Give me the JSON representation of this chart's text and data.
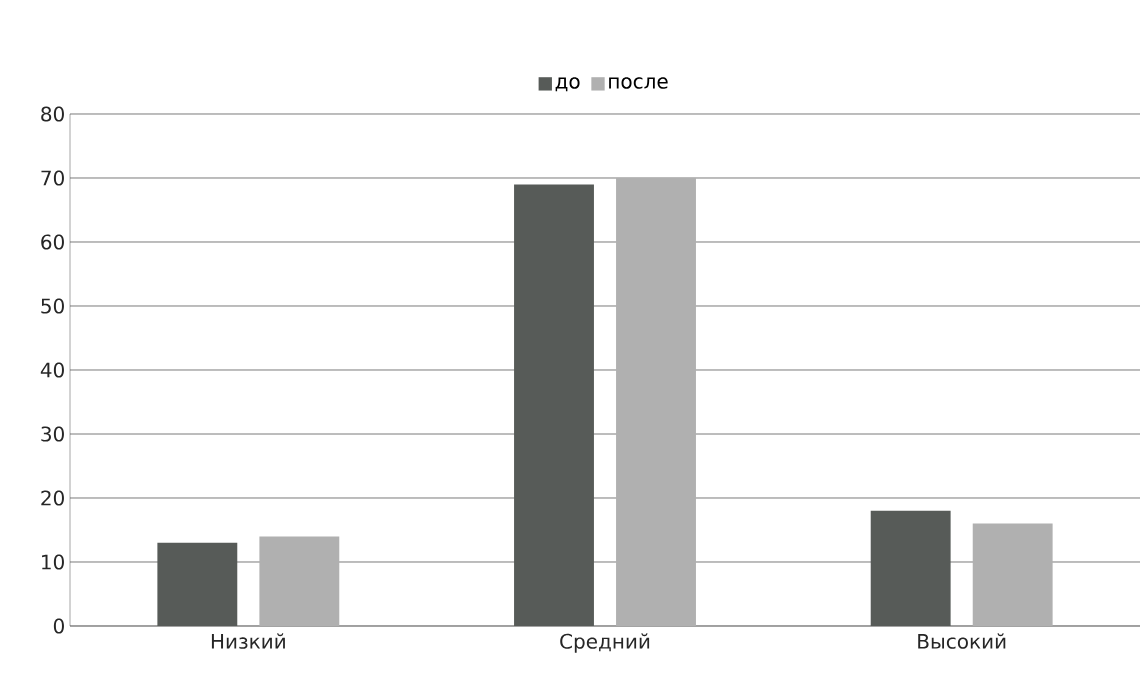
{
  "chart_data": {
    "type": "bar",
    "categories": [
      "Низкий",
      "Средний",
      "Высокий"
    ],
    "series": [
      {
        "name": "до",
        "color": "#575b58",
        "values": [
          13,
          69,
          18
        ]
      },
      {
        "name": "после",
        "color": "#b0b0b0",
        "values": [
          14,
          70,
          16
        ]
      }
    ],
    "ylim": [
      0,
      80
    ],
    "yticks": [
      0,
      10,
      20,
      30,
      40,
      50,
      60,
      70,
      80
    ],
    "grid": "y",
    "legend": "top"
  }
}
